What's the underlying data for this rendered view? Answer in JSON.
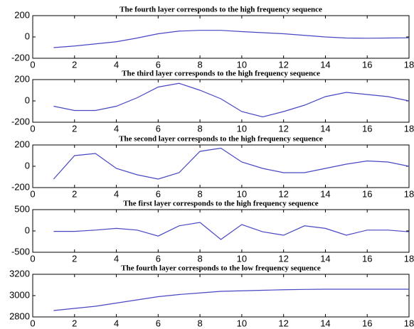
{
  "chart_data": [
    {
      "type": "line",
      "title": "The fourth layer corresponds to the high frequency sequence",
      "x": [
        1,
        2,
        3,
        4,
        5,
        6,
        7,
        8,
        9,
        10,
        11,
        12,
        13,
        14,
        15,
        16,
        17,
        18
      ],
      "series": [
        {
          "name": "fourth layer high",
          "color": "#4747c2",
          "values": [
            -100,
            -85,
            -65,
            -45,
            -10,
            30,
            55,
            62,
            62,
            50,
            40,
            30,
            15,
            0,
            -10,
            -12,
            -10,
            -8
          ]
        }
      ],
      "xlim": [
        0,
        18
      ],
      "xticks": [
        0,
        2,
        4,
        6,
        8,
        10,
        12,
        14,
        16,
        18
      ],
      "ylim": [
        -200,
        200
      ],
      "yticks": [
        -200,
        0,
        200
      ]
    },
    {
      "type": "line",
      "title": "The third layer corresponds to the high frequency sequence",
      "x": [
        1,
        2,
        3,
        4,
        5,
        6,
        7,
        8,
        9,
        10,
        11,
        12,
        13,
        14,
        15,
        16,
        17,
        18
      ],
      "series": [
        {
          "name": "third layer high",
          "color": "#4747c2",
          "values": [
            -50,
            -90,
            -90,
            -50,
            30,
            130,
            165,
            100,
            20,
            -100,
            -150,
            -100,
            -40,
            40,
            80,
            60,
            40,
            0
          ]
        }
      ],
      "xlim": [
        0,
        18
      ],
      "xticks": [
        0,
        2,
        4,
        6,
        8,
        10,
        12,
        14,
        16,
        18
      ],
      "ylim": [
        -200,
        200
      ],
      "yticks": [
        -200,
        0,
        200
      ]
    },
    {
      "type": "line",
      "title": "The second layer corresponds to the high frequency sequence",
      "x": [
        1,
        2,
        3,
        4,
        5,
        6,
        7,
        8,
        9,
        10,
        11,
        12,
        13,
        14,
        15,
        16,
        17,
        18
      ],
      "series": [
        {
          "name": "second layer high",
          "color": "#4747c2",
          "values": [
            -120,
            100,
            120,
            -20,
            -80,
            -120,
            -60,
            140,
            170,
            40,
            -20,
            -60,
            -60,
            -20,
            20,
            50,
            40,
            0
          ]
        }
      ],
      "xlim": [
        0,
        18
      ],
      "xticks": [
        0,
        2,
        4,
        6,
        8,
        10,
        12,
        14,
        16,
        18
      ],
      "ylim": [
        -200,
        200
      ],
      "yticks": [
        -200,
        0,
        200
      ]
    },
    {
      "type": "line",
      "title": "The first layer corresponds to the high frequency sequence",
      "x": [
        1,
        2,
        3,
        4,
        5,
        6,
        7,
        8,
        9,
        10,
        11,
        12,
        13,
        14,
        15,
        16,
        17,
        18
      ],
      "series": [
        {
          "name": "first layer high",
          "color": "#4747c2",
          "values": [
            -10,
            -10,
            20,
            60,
            20,
            -120,
            120,
            200,
            -200,
            150,
            -20,
            -100,
            120,
            60,
            -100,
            20,
            20,
            -20
          ]
        }
      ],
      "xlim": [
        0,
        18
      ],
      "xticks": [
        0,
        2,
        4,
        6,
        8,
        10,
        12,
        14,
        16,
        18
      ],
      "ylim": [
        -500,
        500
      ],
      "yticks": [
        -500,
        0,
        500
      ]
    },
    {
      "type": "line",
      "title": "The fourth layer corresponds to the low frequency sequence",
      "x": [
        1,
        2,
        3,
        4,
        5,
        6,
        7,
        8,
        9,
        10,
        11,
        12,
        13,
        14,
        15,
        16,
        17,
        18
      ],
      "series": [
        {
          "name": "fourth layer low",
          "color": "#4747c2",
          "values": [
            2860,
            2880,
            2900,
            2930,
            2960,
            2990,
            3010,
            3025,
            3040,
            3045,
            3050,
            3055,
            3058,
            3060,
            3060,
            3060,
            3060,
            3060
          ]
        }
      ],
      "xlim": [
        0,
        18
      ],
      "xticks": [
        0,
        2,
        4,
        6,
        8,
        10,
        12,
        14,
        16,
        18
      ],
      "ylim": [
        2800,
        3200
      ],
      "yticks": [
        2800,
        3000,
        3200
      ]
    }
  ]
}
